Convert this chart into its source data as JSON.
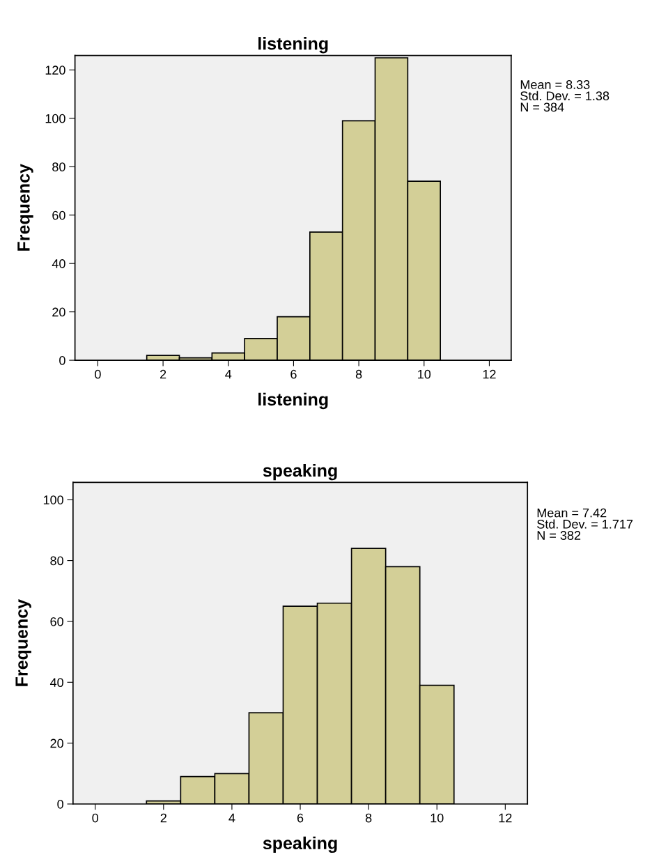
{
  "chart_data": [
    {
      "type": "histogram",
      "title": "listening",
      "xlabel": "listening",
      "ylabel": "Frequency",
      "bins": [
        -0.5,
        0.5,
        1.5,
        2.5,
        3.5,
        4.5,
        5.5,
        6.5,
        7.5,
        8.5,
        9.5,
        10.5,
        11.5,
        12.5
      ],
      "values": [
        0,
        0,
        2,
        1,
        3,
        9,
        18,
        53,
        99,
        125,
        74,
        0,
        0
      ],
      "color": "#d3cf97",
      "xlim": [
        -0.7,
        12.67
      ],
      "xticks": [
        0,
        2,
        4,
        6,
        8,
        10,
        12
      ],
      "ylim": [
        0,
        126
      ],
      "yticks": [
        0,
        20,
        40,
        60,
        80,
        100,
        120
      ],
      "grid": false,
      "legend": false,
      "annotations": [
        "Mean = 8.33\nStd. Dev. = 1.38\nN = 384"
      ]
    },
    {
      "type": "histogram",
      "title": "speaking",
      "xlabel": "speaking",
      "ylabel": "Frequency",
      "bins": [
        -0.5,
        0.5,
        1.5,
        2.5,
        3.5,
        4.5,
        5.5,
        6.5,
        7.5,
        8.5,
        9.5,
        10.5,
        11.5,
        12.5
      ],
      "values": [
        0,
        0,
        1,
        9,
        10,
        30,
        65,
        66,
        84,
        78,
        39,
        0,
        0
      ],
      "color": "#d3cf97",
      "xlim": [
        -0.65,
        12.65
      ],
      "xticks": [
        0,
        2,
        4,
        6,
        8,
        10,
        12
      ],
      "ylim": [
        0,
        105.7
      ],
      "yticks": [
        0,
        20,
        40,
        60,
        80,
        100
      ],
      "grid": false,
      "legend": false,
      "annotations": [
        "Mean = 7.42\nStd. Dev. = 1.717\nN = 382"
      ]
    }
  ]
}
